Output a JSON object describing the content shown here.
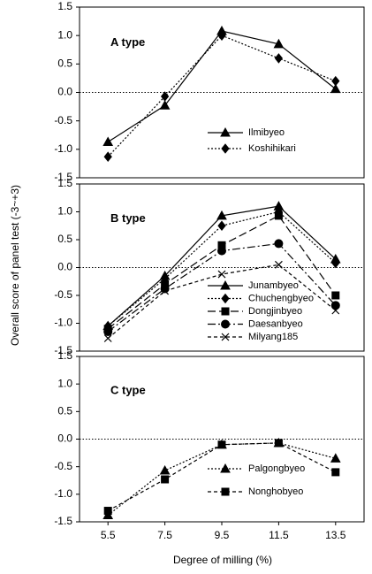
{
  "y_label": "Overall score of panel test (-3~+3)",
  "x_label": "Degree of milling (%)",
  "chart_data": [
    {
      "type": "line",
      "annotation": "A type",
      "legend": "lower right",
      "x": [
        5.5,
        7.5,
        9.5,
        11.5,
        13.5
      ],
      "xlim": [
        4.5,
        14.5
      ],
      "ylim": [
        -1.5,
        1.5
      ],
      "yticks": [
        1.5,
        {
          "value": 1.0,
          "label": "1.0"
        },
        0.5,
        {
          "value": 0.0,
          "label": "0.0"
        },
        -0.5,
        {
          "value": -1.0,
          "label": "-1.0"
        },
        -1.5
      ],
      "hline": 0,
      "series": [
        {
          "name": "Ilmibyeo",
          "color": "#000000",
          "marker": "triangle",
          "line_style": "solid",
          "values": [
            -0.87,
            -0.23,
            1.08,
            0.85,
            0.06
          ]
        },
        {
          "name": "Koshihikari",
          "color": "#000000",
          "marker": "diamond",
          "line_style": "dotted",
          "values": [
            -1.13,
            -0.07,
            1.0,
            0.6,
            0.2
          ]
        }
      ]
    },
    {
      "type": "line",
      "annotation": "B type",
      "legend": "lower right",
      "x": [
        5.5,
        7.5,
        9.5,
        11.5,
        13.5
      ],
      "xlim": [
        4.5,
        14.5
      ],
      "ylim": [
        -1.5,
        1.5
      ],
      "yticks": [
        1.5,
        {
          "value": 1.0,
          "label": "1.0"
        },
        0.5,
        {
          "value": 0.0,
          "label": "0.0"
        },
        -0.5,
        {
          "value": -1.0,
          "label": "-1.0"
        },
        -1.5
      ],
      "hline": 0,
      "series": [
        {
          "name": "Junambyeo",
          "color": "#000000",
          "marker": "triangle",
          "line_style": "solid",
          "values": [
            -1.05,
            -0.15,
            0.93,
            1.1,
            0.15
          ]
        },
        {
          "name": "Chuchengbyeo",
          "color": "#000000",
          "marker": "diamond",
          "line_style": "dotted",
          "values": [
            -1.05,
            -0.2,
            0.75,
            1.0,
            0.08
          ]
        },
        {
          "name": "Dongjinbyeo",
          "color": "#000000",
          "marker": "square",
          "line_style": "longdash",
          "values": [
            -1.1,
            -0.3,
            0.4,
            0.93,
            -0.5
          ]
        },
        {
          "name": "Daesanbyeo",
          "color": "#000000",
          "marker": "circle",
          "line_style": "dashdot",
          "values": [
            -1.15,
            -0.38,
            0.3,
            0.43,
            -0.68
          ]
        },
        {
          "name": "Milyang185",
          "color": "#000000",
          "marker": "x",
          "line_style": "dashed",
          "values": [
            -1.27,
            -0.42,
            -0.12,
            0.05,
            -0.77
          ]
        }
      ]
    },
    {
      "type": "line",
      "annotation": "C type",
      "legend": "lower right",
      "x": [
        5.5,
        7.5,
        9.5,
        11.5,
        13.5
      ],
      "xlim": [
        4.5,
        14.5
      ],
      "xticks": [
        5.5,
        7.5,
        9.5,
        11.5,
        13.5
      ],
      "ylim": [
        -1.5,
        1.5
      ],
      "yticks": [
        1.5,
        {
          "value": 1.0,
          "label": "1.0"
        },
        0.5,
        {
          "value": 0.0,
          "label": "0.0"
        },
        -0.5,
        {
          "value": -1.0,
          "label": "-1.0"
        },
        -1.5
      ],
      "hline": 0,
      "series": [
        {
          "name": "Palgongbyeo",
          "color": "#000000",
          "marker": "triangle",
          "line_style": "dotted",
          "values": [
            -1.38,
            -0.57,
            -0.1,
            -0.07,
            -0.35
          ]
        },
        {
          "name": "Nonghobyeo",
          "color": "#000000",
          "marker": "square",
          "line_style": "dashed",
          "values": [
            -1.3,
            -0.73,
            -0.1,
            -0.07,
            -0.6
          ]
        }
      ]
    }
  ]
}
